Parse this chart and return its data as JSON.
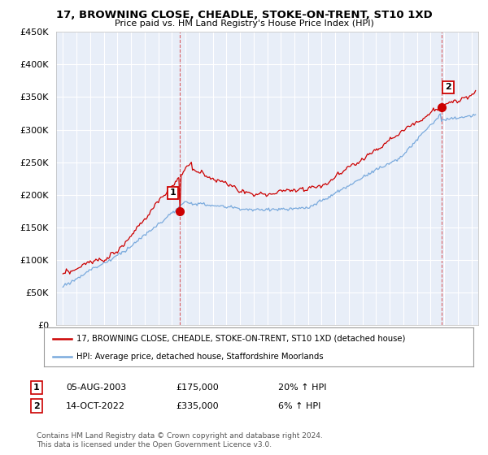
{
  "title": "17, BROWNING CLOSE, CHEADLE, STOKE-ON-TRENT, ST10 1XD",
  "subtitle": "Price paid vs. HM Land Registry's House Price Index (HPI)",
  "ylim": [
    0,
    450000
  ],
  "yticks": [
    0,
    50000,
    100000,
    150000,
    200000,
    250000,
    300000,
    350000,
    400000,
    450000
  ],
  "xlim_start": 1994.5,
  "xlim_end": 2025.5,
  "transaction1_date": 2003.58,
  "transaction1_price": 175000,
  "transaction2_date": 2022.79,
  "transaction2_price": 335000,
  "hpi_color": "#7aaadd",
  "price_color": "#cc0000",
  "vline_color": "#cc0000",
  "legend_label1": "17, BROWNING CLOSE, CHEADLE, STOKE-ON-TRENT, ST10 1XD (detached house)",
  "legend_label2": "HPI: Average price, detached house, Staffordshire Moorlands",
  "annotation1_date": "05-AUG-2003",
  "annotation1_price": "£175,000",
  "annotation1_pct": "20% ↑ HPI",
  "annotation2_date": "14-OCT-2022",
  "annotation2_price": "£335,000",
  "annotation2_pct": "6% ↑ HPI",
  "footer": "Contains HM Land Registry data © Crown copyright and database right 2024.\nThis data is licensed under the Open Government Licence v3.0.",
  "background_color": "#ffffff",
  "plot_bg_color": "#e8eef8",
  "grid_color": "#ffffff"
}
